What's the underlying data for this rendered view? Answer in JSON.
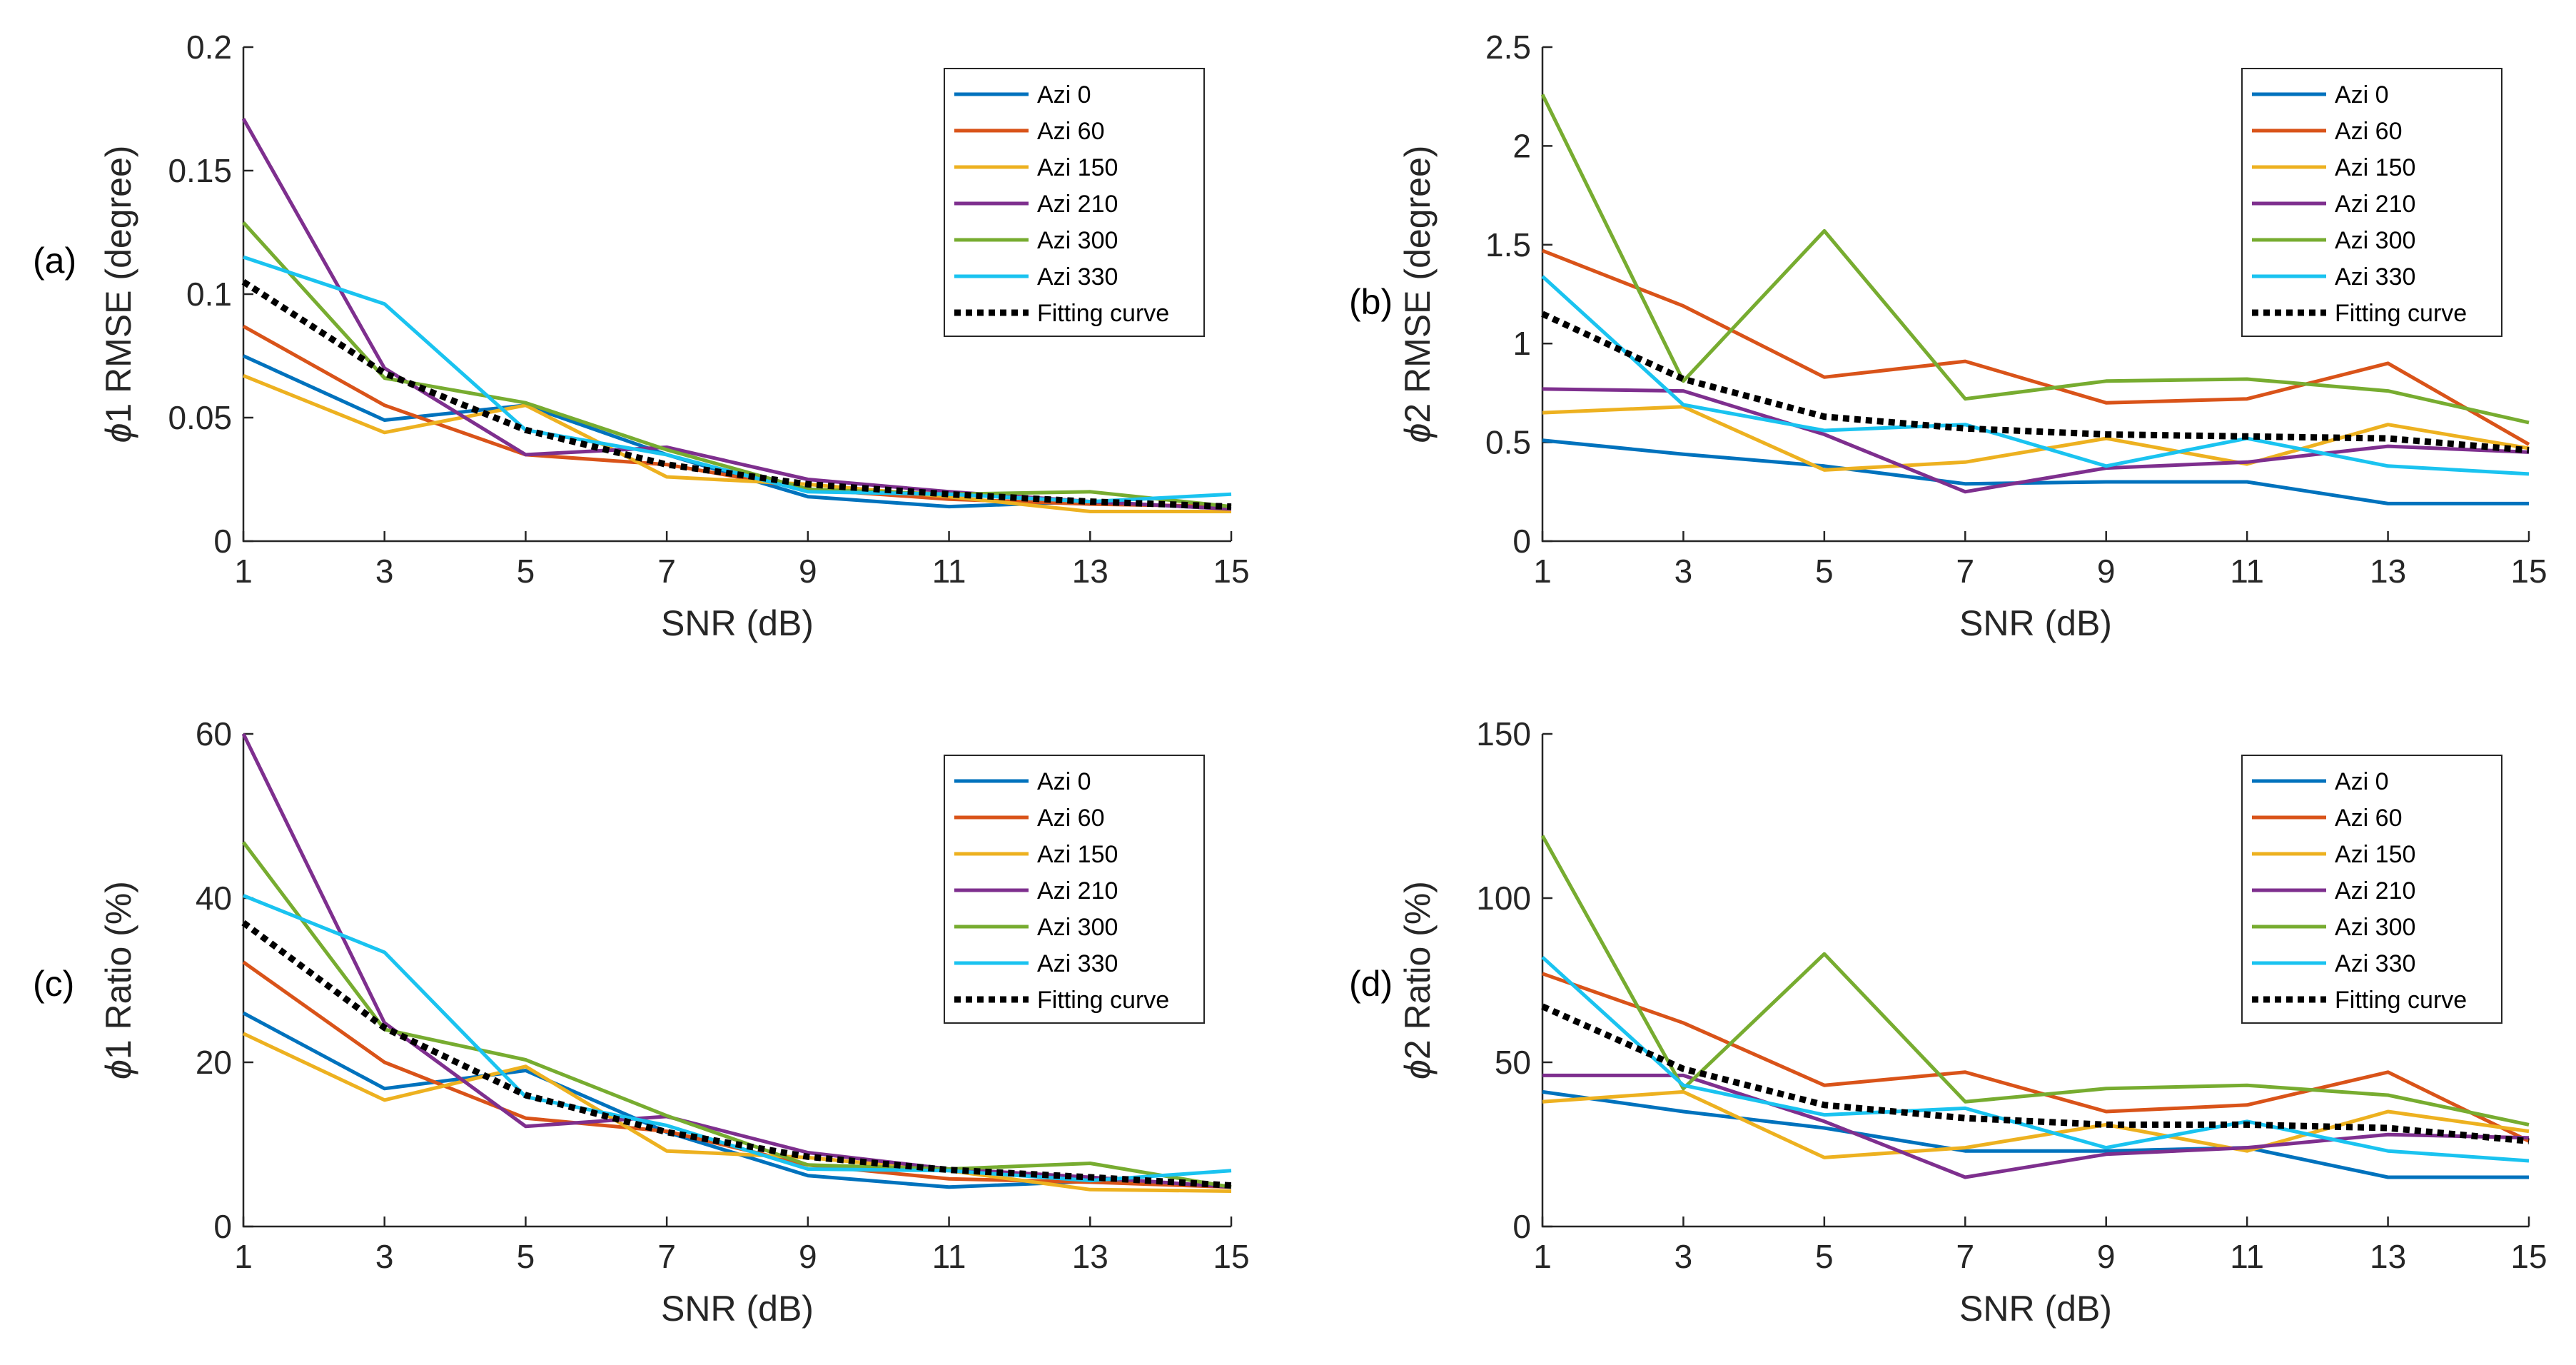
{
  "chart_data": [
    {
      "type": "line",
      "panel_label": "(a)",
      "xlabel": "SNR (dB)",
      "ylabel_symbol": "ϕ",
      "ylabel_text": "1 RMSE (degree)",
      "x": [
        1,
        3,
        5,
        7,
        9,
        11,
        13,
        15
      ],
      "xticks": [
        "1",
        "3",
        "5",
        "7",
        "9",
        "11",
        "13",
        "15"
      ],
      "ylim": [
        0,
        0.2
      ],
      "yticks": [
        0,
        0.05,
        0.1,
        0.15,
        0.2
      ],
      "ytick_labels": [
        "0",
        "0.05",
        "0.1",
        "0.15",
        "0.2"
      ],
      "legend_position": "top-right",
      "series": [
        {
          "name": "Azi 0",
          "color": "#0072BD",
          "style": "solid",
          "values": [
            0.075,
            0.049,
            0.055,
            0.035,
            0.018,
            0.014,
            0.016,
            0.013
          ]
        },
        {
          "name": "Azi 60",
          "color": "#D95319",
          "style": "solid",
          "values": [
            0.087,
            0.055,
            0.035,
            0.031,
            0.021,
            0.017,
            0.015,
            0.014
          ]
        },
        {
          "name": "Azi 150",
          "color": "#EDB120",
          "style": "solid",
          "values": [
            0.067,
            0.044,
            0.055,
            0.026,
            0.023,
            0.018,
            0.012,
            0.012
          ]
        },
        {
          "name": "Azi 210",
          "color": "#7E2F8E",
          "style": "solid",
          "values": [
            0.171,
            0.07,
            0.035,
            0.038,
            0.025,
            0.02,
            0.016,
            0.013
          ]
        },
        {
          "name": "Azi 300",
          "color": "#77AC30",
          "style": "solid",
          "values": [
            0.129,
            0.066,
            0.056,
            0.037,
            0.021,
            0.019,
            0.02,
            0.014
          ]
        },
        {
          "name": "Azi 330",
          "color": "#1AC3F0",
          "style": "solid",
          "values": [
            0.115,
            0.096,
            0.045,
            0.035,
            0.02,
            0.019,
            0.016,
            0.019
          ]
        },
        {
          "name": "Fitting curve",
          "color": "#000000",
          "style": "dotted",
          "values": [
            0.105,
            0.068,
            0.045,
            0.031,
            0.023,
            0.019,
            0.016,
            0.014
          ]
        }
      ]
    },
    {
      "type": "line",
      "panel_label": "(b)",
      "xlabel": "SNR (dB)",
      "ylabel_symbol": "ϕ",
      "ylabel_text": "2 RMSE (degree)",
      "x": [
        1,
        3,
        5,
        7,
        9,
        11,
        13,
        15
      ],
      "xticks": [
        "1",
        "3",
        "5",
        "7",
        "9",
        "11",
        "13",
        "15"
      ],
      "ylim": [
        0,
        2.5
      ],
      "yticks": [
        0,
        0.5,
        1,
        1.5,
        2,
        2.5
      ],
      "ytick_labels": [
        "0",
        "0.5",
        "1",
        "1.5",
        "2",
        "2.5"
      ],
      "legend_position": "top-right",
      "series": [
        {
          "name": "Azi 0",
          "color": "#0072BD",
          "style": "solid",
          "values": [
            0.51,
            0.44,
            0.38,
            0.29,
            0.3,
            0.3,
            0.19,
            0.19
          ]
        },
        {
          "name": "Azi 60",
          "color": "#D95319",
          "style": "solid",
          "values": [
            1.47,
            1.19,
            0.83,
            0.91,
            0.7,
            0.72,
            0.9,
            0.49
          ]
        },
        {
          "name": "Azi 150",
          "color": "#EDB120",
          "style": "solid",
          "values": [
            0.65,
            0.68,
            0.36,
            0.4,
            0.52,
            0.39,
            0.59,
            0.47
          ]
        },
        {
          "name": "Azi 210",
          "color": "#7E2F8E",
          "style": "solid",
          "values": [
            0.77,
            0.76,
            0.54,
            0.25,
            0.37,
            0.4,
            0.48,
            0.45
          ]
        },
        {
          "name": "Azi 300",
          "color": "#77AC30",
          "style": "solid",
          "values": [
            2.26,
            0.81,
            1.57,
            0.72,
            0.81,
            0.82,
            0.76,
            0.6
          ]
        },
        {
          "name": "Azi 330",
          "color": "#1AC3F0",
          "style": "solid",
          "values": [
            1.34,
            0.69,
            0.56,
            0.59,
            0.38,
            0.52,
            0.38,
            0.34
          ]
        },
        {
          "name": "Fitting curve",
          "color": "#000000",
          "style": "dotted",
          "values": [
            1.15,
            0.82,
            0.63,
            0.57,
            0.54,
            0.53,
            0.52,
            0.46
          ]
        }
      ]
    },
    {
      "type": "line",
      "panel_label": "(c)",
      "xlabel": "SNR (dB)",
      "ylabel_symbol": "ϕ",
      "ylabel_text": "1 Ratio (%)",
      "x": [
        1,
        3,
        5,
        7,
        9,
        11,
        13,
        15
      ],
      "xticks": [
        "1",
        "3",
        "5",
        "7",
        "9",
        "11",
        "13",
        "15"
      ],
      "ylim": [
        0,
        60
      ],
      "yticks": [
        0,
        20,
        40,
        60
      ],
      "ytick_labels": [
        "0",
        "20",
        "40",
        "60"
      ],
      "legend_position": "top-right",
      "series": [
        {
          "name": "Azi 0",
          "color": "#0072BD",
          "style": "solid",
          "values": [
            26,
            16.8,
            19,
            11.5,
            6.2,
            4.8,
            5.5,
            4.8
          ]
        },
        {
          "name": "Azi 60",
          "color": "#D95319",
          "style": "solid",
          "values": [
            32.2,
            20,
            13.2,
            11.6,
            7.5,
            5.8,
            5.4,
            4.8
          ]
        },
        {
          "name": "Azi 150",
          "color": "#EDB120",
          "style": "solid",
          "values": [
            23.5,
            15.4,
            19.5,
            9.2,
            8.4,
            6.8,
            4.5,
            4.3
          ]
        },
        {
          "name": "Azi 210",
          "color": "#7E2F8E",
          "style": "solid",
          "values": [
            60,
            24.8,
            12.2,
            13.4,
            9,
            7,
            6,
            4.8
          ]
        },
        {
          "name": "Azi 300",
          "color": "#77AC30",
          "style": "solid",
          "values": [
            46.8,
            24,
            20.3,
            13.5,
            7.5,
            7,
            7.7,
            4.8
          ]
        },
        {
          "name": "Azi 330",
          "color": "#1AC3F0",
          "style": "solid",
          "values": [
            40.3,
            33.4,
            15.8,
            12.3,
            7,
            6.8,
            5.6,
            6.8
          ]
        },
        {
          "name": "Fitting curve",
          "color": "#000000",
          "style": "dotted",
          "values": [
            37,
            24.2,
            16,
            11.5,
            8.5,
            6.9,
            6,
            5
          ]
        }
      ]
    },
    {
      "type": "line",
      "panel_label": "(d)",
      "xlabel": "SNR (dB)",
      "ylabel_symbol": "ϕ",
      "ylabel_text": "2 Ratio (%)",
      "x": [
        1,
        3,
        5,
        7,
        9,
        11,
        13,
        15
      ],
      "xticks": [
        "1",
        "3",
        "5",
        "7",
        "9",
        "11",
        "13",
        "15"
      ],
      "ylim": [
        0,
        150
      ],
      "yticks": [
        0,
        50,
        100,
        150
      ],
      "ytick_labels": [
        "0",
        "50",
        "100",
        "150"
      ],
      "legend_position": "top-right",
      "series": [
        {
          "name": "Azi 0",
          "color": "#0072BD",
          "style": "solid",
          "values": [
            41,
            35,
            30,
            23,
            23,
            24,
            15,
            15
          ]
        },
        {
          "name": "Azi 60",
          "color": "#D95319",
          "style": "solid",
          "values": [
            77,
            62,
            43,
            47,
            35,
            37,
            47,
            26
          ]
        },
        {
          "name": "Azi 150",
          "color": "#EDB120",
          "style": "solid",
          "values": [
            38,
            41,
            21,
            24,
            31,
            23,
            35,
            29
          ]
        },
        {
          "name": "Azi 210",
          "color": "#7E2F8E",
          "style": "solid",
          "values": [
            46,
            46,
            32,
            15,
            22,
            24,
            28,
            27
          ]
        },
        {
          "name": "Azi 300",
          "color": "#77AC30",
          "style": "solid",
          "values": [
            119,
            42,
            83,
            38,
            42,
            43,
            40,
            31
          ]
        },
        {
          "name": "Azi 330",
          "color": "#1AC3F0",
          "style": "solid",
          "values": [
            82,
            43,
            34,
            36,
            24,
            32,
            23,
            20
          ]
        },
        {
          "name": "Fitting curve",
          "color": "#000000",
          "style": "dotted",
          "values": [
            67,
            48,
            37,
            33,
            31,
            31,
            30,
            26
          ]
        }
      ]
    }
  ]
}
